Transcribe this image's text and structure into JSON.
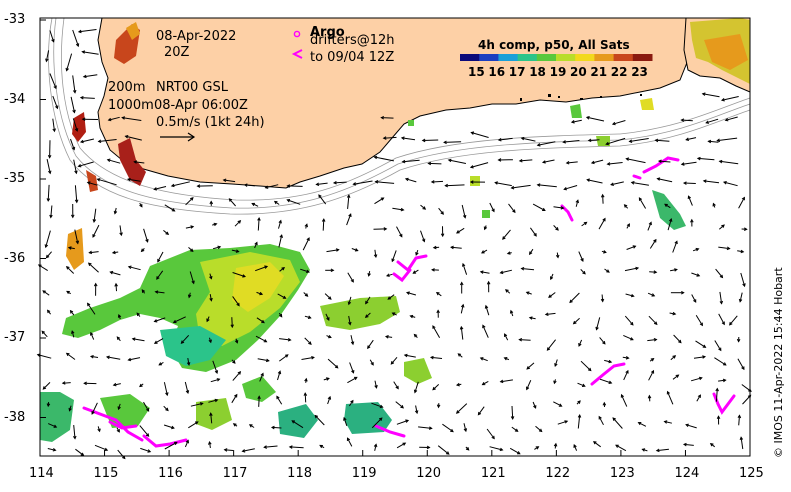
{
  "map": {
    "date_label": "08-Apr-2022",
    "time_label": "20Z",
    "depth_line_1": "200m",
    "depth_line_2": "1000m",
    "source_label": "NRT00 GSL",
    "source_time": "08-Apr 06:00Z",
    "scale_label": "0.5m/s (1kt 24h)",
    "credit": "© IMOS 11-Apr-2022 15:44 Hobart"
  },
  "legend": {
    "argo_label": "Argo",
    "drifter_label": "drifters@12h",
    "drifter_sub": "to 09/04 12Z",
    "colorbar_title": "4h comp, p50, All Sats",
    "colorbar_ticks": [
      "15",
      "16",
      "17",
      "18",
      "19",
      "20",
      "21",
      "22",
      "23"
    ],
    "colorbar_colors": [
      "#0b0a7a",
      "#1c3fc0",
      "#1aa0d8",
      "#2bc48a",
      "#59c83c",
      "#b9dd2a",
      "#f2d91c",
      "#e69a1c",
      "#c8461c",
      "#8a1a10"
    ]
  },
  "axes": {
    "x_ticks": [
      "114",
      "115",
      "116",
      "117",
      "118",
      "119",
      "120",
      "121",
      "122",
      "123",
      "124",
      "125"
    ],
    "y_ticks": [
      "-33",
      "-34",
      "-35",
      "-36",
      "-37",
      "-38"
    ]
  },
  "colors": {
    "land": "#fdd0a6",
    "drifter": "#ff00ff",
    "isobath": "#9a9a9a"
  }
}
